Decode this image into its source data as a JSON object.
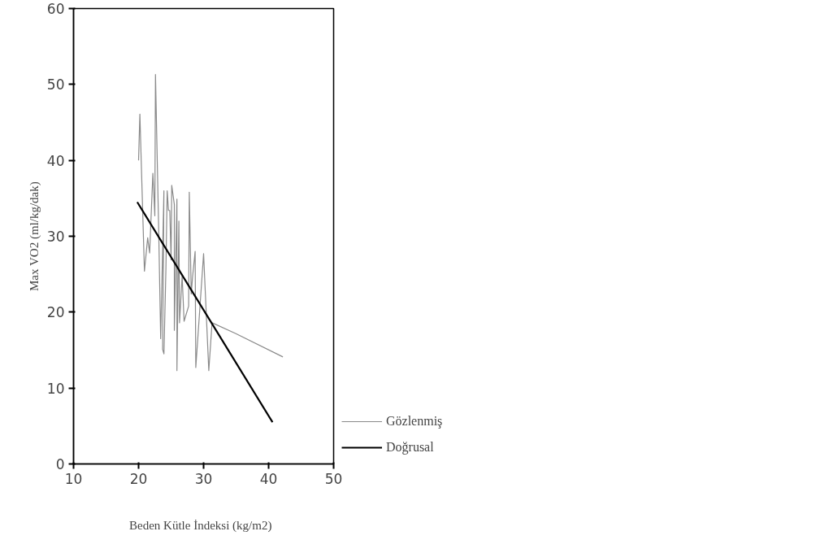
{
  "chart_data": {
    "type": "line",
    "xlabel": "Beden Kütle İndeksi   (kg/m2)",
    "ylabel": "Max VO2 (ml/kg/dak)",
    "xlim": [
      10,
      50
    ],
    "ylim": [
      0,
      60
    ],
    "xticks": [
      10,
      20,
      30,
      40,
      50
    ],
    "yticks": [
      0,
      10,
      20,
      30,
      40,
      50,
      60
    ],
    "grid": false,
    "legend": "right",
    "marker": "none",
    "line_style": "solid",
    "series": [
      {
        "name": "Gözlenmiş",
        "color": "#8a8a8a",
        "x": [
          20.0,
          20.2,
          20.9,
          21.4,
          21.7,
          22.2,
          22.5,
          22.6,
          23.1,
          23.4,
          23.9,
          23.7,
          23.9,
          24.2,
          24.4,
          24.6,
          24.8,
          25.0,
          25.1,
          25.5,
          25.5,
          25.9,
          25.9,
          26.2,
          26.3,
          26.7,
          27.0,
          27.7,
          27.8,
          28.1,
          28.3,
          28.7,
          28.8,
          30.0,
          30.8,
          31.3,
          34.9,
          42.2
        ],
        "values": [
          40.0,
          46.1,
          25.4,
          29.8,
          27.8,
          38.3,
          32.7,
          51.3,
          30.6,
          16.5,
          36.0,
          15.1,
          14.5,
          25.5,
          36.0,
          33.4,
          33.4,
          26.9,
          36.7,
          34.2,
          17.6,
          34.9,
          12.3,
          32.0,
          18.6,
          24.8,
          18.8,
          20.8,
          35.8,
          22.4,
          24.6,
          28.0,
          12.7,
          27.7,
          12.3,
          18.6,
          17.2,
          14.1
        ]
      },
      {
        "name": "Doğrusal",
        "color": "#000000",
        "type": "line",
        "x": [
          19.8,
          40.6
        ],
        "values": [
          34.5,
          5.5
        ]
      }
    ]
  }
}
